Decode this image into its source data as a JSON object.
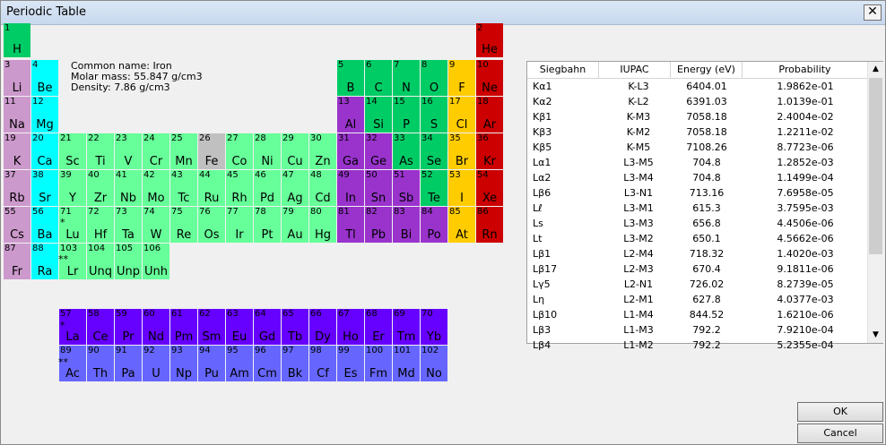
{
  "window": {
    "title": "Periodic Table",
    "close_glyph": "✕"
  },
  "elements": [
    {
      "n": "1",
      "s": "H",
      "cat": "nonmetal",
      "r": 0,
      "c": 0
    },
    {
      "n": "2",
      "s": "He",
      "cat": "noble",
      "r": 0,
      "c": 17
    },
    {
      "n": "3",
      "s": "Li",
      "cat": "alkali",
      "r": 1,
      "c": 0
    },
    {
      "n": "4",
      "s": "Be",
      "cat": "alkaline",
      "r": 1,
      "c": 1
    },
    {
      "n": "5",
      "s": "B",
      "cat": "nonmetal",
      "r": 1,
      "c": 12
    },
    {
      "n": "6",
      "s": "C",
      "cat": "nonmetal",
      "r": 1,
      "c": 13
    },
    {
      "n": "7",
      "s": "N",
      "cat": "nonmetal",
      "r": 1,
      "c": 14
    },
    {
      "n": "8",
      "s": "O",
      "cat": "nonmetal",
      "r": 1,
      "c": 15
    },
    {
      "n": "9",
      "s": "F",
      "cat": "halogen",
      "r": 1,
      "c": 16
    },
    {
      "n": "10",
      "s": "Ne",
      "cat": "noble",
      "r": 1,
      "c": 17
    },
    {
      "n": "11",
      "s": "Na",
      "cat": "alkali",
      "r": 2,
      "c": 0
    },
    {
      "n": "12",
      "s": "Mg",
      "cat": "alkaline",
      "r": 2,
      "c": 1
    },
    {
      "n": "13",
      "s": "Al",
      "cat": "post",
      "r": 2,
      "c": 12
    },
    {
      "n": "14",
      "s": "Si",
      "cat": "metalloid",
      "r": 2,
      "c": 13
    },
    {
      "n": "15",
      "s": "P",
      "cat": "nonmetal",
      "r": 2,
      "c": 14
    },
    {
      "n": "16",
      "s": "S",
      "cat": "nonmetal",
      "r": 2,
      "c": 15
    },
    {
      "n": "17",
      "s": "Cl",
      "cat": "halogen",
      "r": 2,
      "c": 16
    },
    {
      "n": "18",
      "s": "Ar",
      "cat": "noble",
      "r": 2,
      "c": 17
    },
    {
      "n": "19",
      "s": "K",
      "cat": "alkali",
      "r": 3,
      "c": 0
    },
    {
      "n": "20",
      "s": "Ca",
      "cat": "alkaline",
      "r": 3,
      "c": 1
    },
    {
      "n": "21",
      "s": "Sc",
      "cat": "transition",
      "r": 3,
      "c": 2
    },
    {
      "n": "22",
      "s": "Ti",
      "cat": "transition",
      "r": 3,
      "c": 3
    },
    {
      "n": "23",
      "s": "V",
      "cat": "transition",
      "r": 3,
      "c": 4
    },
    {
      "n": "24",
      "s": "Cr",
      "cat": "transition",
      "r": 3,
      "c": 5
    },
    {
      "n": "25",
      "s": "Mn",
      "cat": "transition",
      "r": 3,
      "c": 6
    },
    {
      "n": "26",
      "s": "Fe",
      "cat": "selected",
      "r": 3,
      "c": 7
    },
    {
      "n": "27",
      "s": "Co",
      "cat": "transition",
      "r": 3,
      "c": 8
    },
    {
      "n": "28",
      "s": "Ni",
      "cat": "transition",
      "r": 3,
      "c": 9
    },
    {
      "n": "29",
      "s": "Cu",
      "cat": "transition",
      "r": 3,
      "c": 10
    },
    {
      "n": "30",
      "s": "Zn",
      "cat": "transition",
      "r": 3,
      "c": 11
    },
    {
      "n": "31",
      "s": "Ga",
      "cat": "post",
      "r": 3,
      "c": 12
    },
    {
      "n": "32",
      "s": "Ge",
      "cat": "post",
      "r": 3,
      "c": 13
    },
    {
      "n": "33",
      "s": "As",
      "cat": "metalloid",
      "r": 3,
      "c": 14
    },
    {
      "n": "34",
      "s": "Se",
      "cat": "nonmetal",
      "r": 3,
      "c": 15
    },
    {
      "n": "35",
      "s": "Br",
      "cat": "halogen",
      "r": 3,
      "c": 16
    },
    {
      "n": "36",
      "s": "Kr",
      "cat": "noble",
      "r": 3,
      "c": 17
    },
    {
      "n": "37",
      "s": "Rb",
      "cat": "alkali",
      "r": 4,
      "c": 0
    },
    {
      "n": "38",
      "s": "Sr",
      "cat": "alkaline",
      "r": 4,
      "c": 1
    },
    {
      "n": "39",
      "s": "Y",
      "cat": "transition",
      "r": 4,
      "c": 2
    },
    {
      "n": "40",
      "s": "Zr",
      "cat": "transition",
      "r": 4,
      "c": 3
    },
    {
      "n": "41",
      "s": "Nb",
      "cat": "transition",
      "r": 4,
      "c": 4
    },
    {
      "n": "42",
      "s": "Mo",
      "cat": "transition",
      "r": 4,
      "c": 5
    },
    {
      "n": "43",
      "s": "Tc",
      "cat": "transition",
      "r": 4,
      "c": 6
    },
    {
      "n": "44",
      "s": "Ru",
      "cat": "transition",
      "r": 4,
      "c": 7
    },
    {
      "n": "45",
      "s": "Rh",
      "cat": "transition",
      "r": 4,
      "c": 8
    },
    {
      "n": "46",
      "s": "Pd",
      "cat": "transition",
      "r": 4,
      "c": 9
    },
    {
      "n": "47",
      "s": "Ag",
      "cat": "transition",
      "r": 4,
      "c": 10
    },
    {
      "n": "48",
      "s": "Cd",
      "cat": "transition",
      "r": 4,
      "c": 11
    },
    {
      "n": "49",
      "s": "In",
      "cat": "post",
      "r": 4,
      "c": 12
    },
    {
      "n": "50",
      "s": "Sn",
      "cat": "post",
      "r": 4,
      "c": 13
    },
    {
      "n": "51",
      "s": "Sb",
      "cat": "post",
      "r": 4,
      "c": 14
    },
    {
      "n": "52",
      "s": "Te",
      "cat": "metalloid",
      "r": 4,
      "c": 15
    },
    {
      "n": "53",
      "s": "I",
      "cat": "halogen",
      "r": 4,
      "c": 16
    },
    {
      "n": "54",
      "s": "Xe",
      "cat": "noble",
      "r": 4,
      "c": 17
    },
    {
      "n": "55",
      "s": "Cs",
      "cat": "alkali",
      "r": 5,
      "c": 0
    },
    {
      "n": "56",
      "s": "Ba",
      "cat": "alkaline",
      "r": 5,
      "c": 1
    },
    {
      "n": "71",
      "s": "Lu",
      "cat": "transition",
      "r": 5,
      "c": 2
    },
    {
      "n": "72",
      "s": "Hf",
      "cat": "transition",
      "r": 5,
      "c": 3
    },
    {
      "n": "73",
      "s": "Ta",
      "cat": "transition",
      "r": 5,
      "c": 4
    },
    {
      "n": "74",
      "s": "W",
      "cat": "transition",
      "r": 5,
      "c": 5
    },
    {
      "n": "75",
      "s": "Re",
      "cat": "transition",
      "r": 5,
      "c": 6
    },
    {
      "n": "76",
      "s": "Os",
      "cat": "transition",
      "r": 5,
      "c": 7
    },
    {
      "n": "77",
      "s": "Ir",
      "cat": "transition",
      "r": 5,
      "c": 8
    },
    {
      "n": "78",
      "s": "Pt",
      "cat": "transition",
      "r": 5,
      "c": 9
    },
    {
      "n": "79",
      "s": "Au",
      "cat": "transition",
      "r": 5,
      "c": 10
    },
    {
      "n": "80",
      "s": "Hg",
      "cat": "transition",
      "r": 5,
      "c": 11
    },
    {
      "n": "81",
      "s": "Tl",
      "cat": "post",
      "r": 5,
      "c": 12
    },
    {
      "n": "82",
      "s": "Pb",
      "cat": "post",
      "r": 5,
      "c": 13
    },
    {
      "n": "83",
      "s": "Bi",
      "cat": "post",
      "r": 5,
      "c": 14
    },
    {
      "n": "84",
      "s": "Po",
      "cat": "post",
      "r": 5,
      "c": 15
    },
    {
      "n": "85",
      "s": "At",
      "cat": "halogen",
      "r": 5,
      "c": 16
    },
    {
      "n": "86",
      "s": "Rn",
      "cat": "noble",
      "r": 5,
      "c": 17
    },
    {
      "n": "87",
      "s": "Fr",
      "cat": "alkali",
      "r": 6,
      "c": 0
    },
    {
      "n": "88",
      "s": "Ra",
      "cat": "alkaline",
      "r": 6,
      "c": 1
    },
    {
      "n": "103",
      "s": "Lr",
      "cat": "transition",
      "r": 6,
      "c": 2
    },
    {
      "n": "104",
      "s": "Unq",
      "cat": "transition",
      "r": 6,
      "c": 3
    },
    {
      "n": "105",
      "s": "Unp",
      "cat": "transition",
      "r": 6,
      "c": 4
    },
    {
      "n": "106",
      "s": "Unh",
      "cat": "transition",
      "r": 6,
      "c": 5
    },
    {
      "n": "57",
      "s": "La",
      "cat": "lanth",
      "r": 7,
      "c": 2
    },
    {
      "n": "58",
      "s": "Ce",
      "cat": "lanth",
      "r": 7,
      "c": 3
    },
    {
      "n": "59",
      "s": "Pr",
      "cat": "lanth",
      "r": 7,
      "c": 4
    },
    {
      "n": "60",
      "s": "Nd",
      "cat": "lanth",
      "r": 7,
      "c": 5
    },
    {
      "n": "61",
      "s": "Pm",
      "cat": "lanth",
      "r": 7,
      "c": 6
    },
    {
      "n": "62",
      "s": "Sm",
      "cat": "lanth",
      "r": 7,
      "c": 7
    },
    {
      "n": "63",
      "s": "Eu",
      "cat": "lanth",
      "r": 7,
      "c": 8
    },
    {
      "n": "64",
      "s": "Gd",
      "cat": "lanth",
      "r": 7,
      "c": 9
    },
    {
      "n": "65",
      "s": "Tb",
      "cat": "lanth",
      "r": 7,
      "c": 10
    },
    {
      "n": "66",
      "s": "Dy",
      "cat": "lanth",
      "r": 7,
      "c": 11
    },
    {
      "n": "67",
      "s": "Ho",
      "cat": "lanth",
      "r": 7,
      "c": 12
    },
    {
      "n": "68",
      "s": "Er",
      "cat": "lanth",
      "r": 7,
      "c": 13
    },
    {
      "n": "69",
      "s": "Tm",
      "cat": "lanth",
      "r": 7,
      "c": 14
    },
    {
      "n": "70",
      "s": "Yb",
      "cat": "lanth",
      "r": 7,
      "c": 15
    },
    {
      "n": "89",
      "s": "Ac",
      "cat": "act",
      "r": 8,
      "c": 2
    },
    {
      "n": "90",
      "s": "Th",
      "cat": "act",
      "r": 8,
      "c": 3
    },
    {
      "n": "91",
      "s": "Pa",
      "cat": "act",
      "r": 8,
      "c": 4
    },
    {
      "n": "92",
      "s": "U",
      "cat": "act",
      "r": 8,
      "c": 5
    },
    {
      "n": "93",
      "s": "Np",
      "cat": "act",
      "r": 8,
      "c": 6
    },
    {
      "n": "94",
      "s": "Pu",
      "cat": "act",
      "r": 8,
      "c": 7
    },
    {
      "n": "95",
      "s": "Am",
      "cat": "act",
      "r": 8,
      "c": 8
    },
    {
      "n": "96",
      "s": "Cm",
      "cat": "act",
      "r": 8,
      "c": 9
    },
    {
      "n": "97",
      "s": "Bk",
      "cat": "act",
      "r": 8,
      "c": 10
    },
    {
      "n": "98",
      "s": "Cf",
      "cat": "act",
      "r": 8,
      "c": 11
    },
    {
      "n": "99",
      "s": "Es",
      "cat": "act",
      "r": 8,
      "c": 12
    },
    {
      "n": "100",
      "s": "Fm",
      "cat": "act",
      "r": 8,
      "c": 13
    },
    {
      "n": "101",
      "s": "Md",
      "cat": "act",
      "r": 8,
      "c": 14
    },
    {
      "n": "102",
      "s": "No",
      "cat": "act",
      "r": 8,
      "c": 15
    }
  ],
  "markers": {
    "lanthanide": "*",
    "actinide": "**"
  },
  "info": {
    "common_name": "Common name: Iron",
    "molar_mass": "Molar mass: 55.847 g/cm3",
    "density": "Density: 7.86 g/cm3"
  },
  "table": {
    "columns": [
      "Siegbahn",
      "IUPAC",
      "Energy (eV)",
      "Probability"
    ],
    "rows": [
      [
        "Kα1",
        "K-L3",
        "6404.01",
        "1.9862e-01"
      ],
      [
        "Kα2",
        "K-L2",
        "6391.03",
        "1.0139e-01"
      ],
      [
        "Kβ1",
        "K-M3",
        "7058.18",
        "2.4004e-02"
      ],
      [
        "Kβ3",
        "K-M2",
        "7058.18",
        "1.2211e-02"
      ],
      [
        "Kβ5",
        "K-M5",
        "7108.26",
        "8.7723e-06"
      ],
      [
        "Lα1",
        "L3-M5",
        "704.8",
        "1.2852e-03"
      ],
      [
        "Lα2",
        "L3-M4",
        "704.8",
        "1.1499e-04"
      ],
      [
        "Lβ6",
        "L3-N1",
        "713.16",
        "7.6958e-05"
      ],
      [
        "Lℓ",
        "L3-M1",
        "615.3",
        "3.7595e-03"
      ],
      [
        "Ls",
        "L3-M3",
        "656.8",
        "4.4506e-06"
      ],
      [
        "Lt",
        "L3-M2",
        "650.1",
        "4.5662e-06"
      ],
      [
        "Lβ1",
        "L2-M4",
        "718.32",
        "1.4020e-03"
      ],
      [
        "Lβ17",
        "L2-M3",
        "670.4",
        "9.1811e-06"
      ],
      [
        "Lγ5",
        "L2-N1",
        "726.02",
        "8.2739e-05"
      ],
      [
        "Lη",
        "L2-M1",
        "627.8",
        "4.0377e-03"
      ],
      [
        "Lβ10",
        "L1-M4",
        "844.52",
        "1.6210e-06"
      ],
      [
        "Lβ3",
        "L1-M3",
        "792.2",
        "7.9210e-04"
      ],
      [
        "Lβ4",
        "L1-M2",
        "792.2",
        "5.2355e-04"
      ]
    ]
  },
  "scroll": {
    "up_glyph": "▲",
    "down_glyph": "▼"
  },
  "buttons": {
    "ok": "OK",
    "cancel": "Cancel"
  }
}
